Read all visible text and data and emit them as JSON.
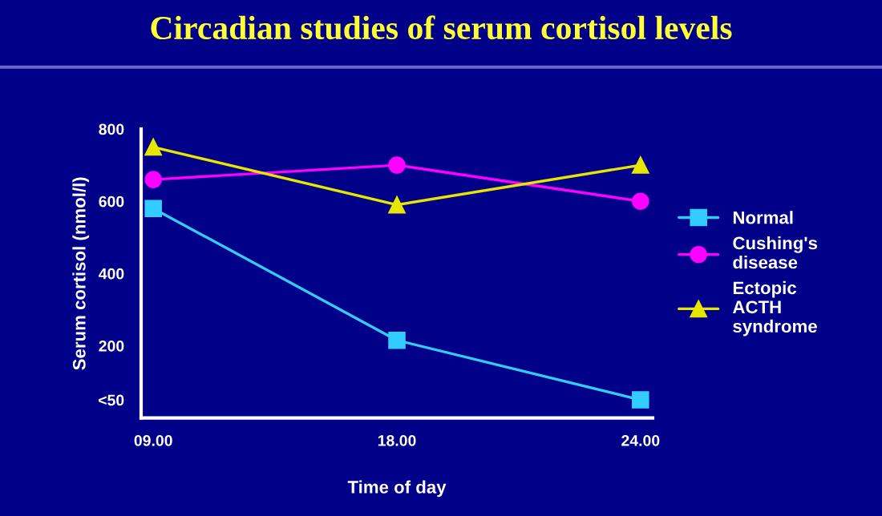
{
  "chart_data": {
    "type": "line",
    "title": "Circadian studies of serum cortisol levels",
    "xlabel": "Time of day",
    "ylabel": "Serum cortisol (nmol/l)",
    "categories": [
      "09.00",
      "18.00",
      "24.00"
    ],
    "series": [
      {
        "name": "Normal",
        "color": "#33ccff",
        "marker": "square",
        "values": [
          580,
          215,
          50
        ]
      },
      {
        "name": "Cushing's disease",
        "color": "#ff00ff",
        "marker": "circle",
        "values": [
          660,
          700,
          600
        ]
      },
      {
        "name": "Ectopic ACTH syndrome",
        "color": "#e6e600",
        "marker": "triangle",
        "values": [
          750,
          590,
          700
        ]
      }
    ],
    "ylim": [
      0,
      800
    ],
    "yticks": [
      {
        "value": 50,
        "label": "<50"
      },
      200,
      400,
      600,
      800
    ],
    "grid": false,
    "legend": "right",
    "line_style": "solid"
  }
}
